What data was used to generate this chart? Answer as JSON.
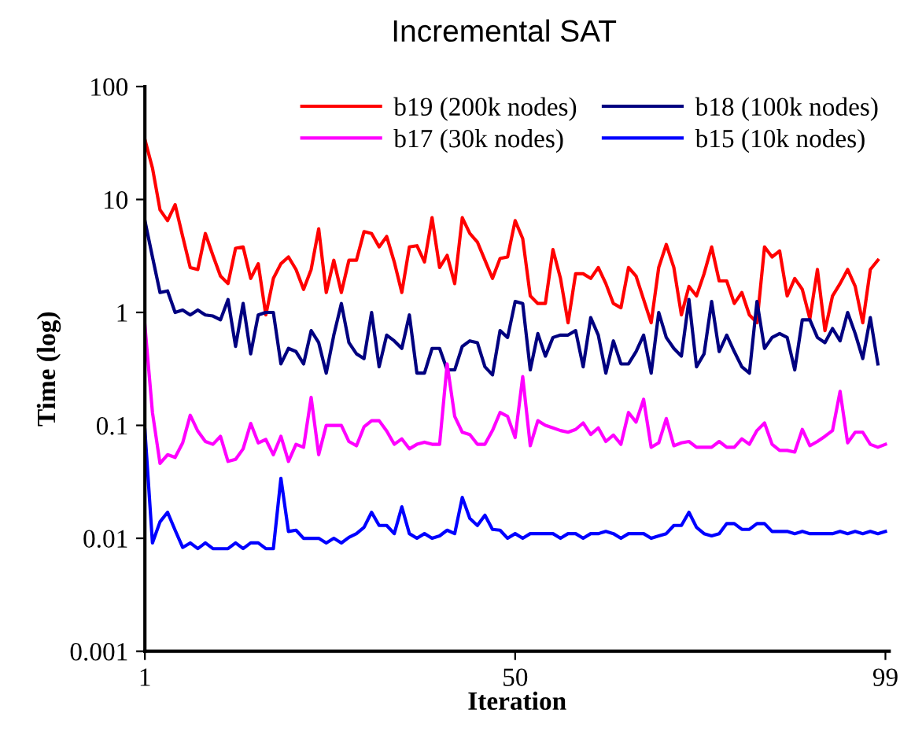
{
  "chart_data": {
    "type": "line",
    "title": "Incremental SAT",
    "xlabel": "Iteration",
    "ylabel": "Time (log)",
    "log": true,
    "grid": false,
    "legend": "top right",
    "marker": "none",
    "line_style": "solid",
    "xlim": [
      1,
      99.5
    ],
    "xticks": [
      1,
      50,
      99
    ],
    "ylim": [
      0.001,
      100
    ],
    "yticks": [
      0.001,
      0.01,
      0.1,
      1,
      10,
      100
    ],
    "series": [
      {
        "name": "b19 (200k nodes)",
        "color": "#ff0000",
        "x": [
          1,
          2,
          3,
          4,
          5,
          6,
          7,
          8,
          9,
          10,
          11,
          12,
          13,
          14,
          15,
          16,
          17,
          18,
          19,
          20,
          21,
          22,
          23,
          24,
          25,
          26,
          27,
          28,
          29,
          30,
          31,
          32,
          33,
          34,
          35,
          36,
          37,
          38,
          39,
          40,
          41,
          42,
          43,
          44,
          45,
          46,
          47,
          48,
          49,
          50,
          51,
          52,
          53,
          54,
          55,
          56,
          57,
          58,
          59,
          60,
          61,
          62,
          63,
          64,
          65,
          66,
          67,
          68,
          69,
          70,
          71,
          72,
          73,
          74,
          75,
          76,
          77,
          78,
          79,
          80,
          81,
          82,
          83,
          84,
          85,
          86,
          87,
          88,
          89,
          90,
          91,
          92,
          93,
          94,
          95,
          96,
          97,
          98
        ],
        "values": [
          34,
          19,
          8.1,
          6.5,
          9,
          4.7,
          2.5,
          2.4,
          5.0,
          3.2,
          2.1,
          1.8,
          3.7,
          3.8,
          2.0,
          2.7,
          0.95,
          2.0,
          2.7,
          3.1,
          2.4,
          1.6,
          2.4,
          5.5,
          1.5,
          2.9,
          1.5,
          2.9,
          2.9,
          5.2,
          5.0,
          3.8,
          4.7,
          2.8,
          1.5,
          3.8,
          3.9,
          2.8,
          6.9,
          2.5,
          3.2,
          1.8,
          6.9,
          5.0,
          4.2,
          2.9,
          2.0,
          3.0,
          3.1,
          6.5,
          4.5,
          1.4,
          1.2,
          1.2,
          3.6,
          2.0,
          0.81,
          2.2,
          2.2,
          2.0,
          2.5,
          1.8,
          1.2,
          1.1,
          2.5,
          2.1,
          1.3,
          0.81,
          2.5,
          4.0,
          2.5,
          0.95,
          1.7,
          1.4,
          2.2,
          3.8,
          1.9,
          1.9,
          1.2,
          1.5,
          0.95,
          0.81,
          3.8,
          3.1,
          3.5,
          1.4,
          2.0,
          1.6,
          0.88,
          2.4,
          0.69,
          1.4,
          1.8,
          2.4,
          1.7,
          0.81,
          2.4,
          2.9
        ]
      },
      {
        "name": "b18 (100k nodes)",
        "color": "#000080",
        "x": [
          1,
          2,
          3,
          4,
          5,
          6,
          7,
          8,
          9,
          10,
          11,
          12,
          13,
          14,
          15,
          16,
          17,
          18,
          19,
          20,
          21,
          22,
          23,
          24,
          25,
          26,
          27,
          28,
          29,
          30,
          31,
          32,
          33,
          34,
          35,
          36,
          37,
          38,
          39,
          40,
          41,
          42,
          43,
          44,
          45,
          46,
          47,
          48,
          49,
          50,
          51,
          52,
          53,
          54,
          55,
          56,
          57,
          58,
          59,
          60,
          61,
          62,
          63,
          64,
          65,
          66,
          67,
          68,
          69,
          70,
          71,
          72,
          73,
          74,
          75,
          76,
          77,
          78,
          79,
          80,
          81,
          82,
          83,
          84,
          85,
          86,
          87,
          88,
          89,
          90,
          91,
          92,
          93,
          94,
          95,
          96,
          97,
          98
        ],
        "values": [
          6.5,
          3.1,
          1.5,
          1.55,
          1.0,
          1.05,
          0.95,
          1.05,
          0.95,
          0.93,
          0.86,
          1.3,
          0.5,
          1.2,
          0.43,
          0.95,
          1.0,
          1.0,
          0.35,
          0.48,
          0.45,
          0.35,
          0.69,
          0.54,
          0.29,
          0.63,
          1.2,
          0.54,
          0.43,
          0.39,
          1.0,
          0.33,
          0.63,
          0.56,
          0.48,
          0.95,
          0.29,
          0.29,
          0.48,
          0.48,
          0.31,
          0.31,
          0.5,
          0.56,
          0.54,
          0.33,
          0.28,
          0.69,
          0.6,
          1.25,
          1.2,
          0.31,
          0.65,
          0.41,
          0.6,
          0.63,
          0.63,
          0.69,
          0.33,
          0.9,
          0.63,
          0.29,
          0.56,
          0.35,
          0.35,
          0.45,
          0.63,
          0.29,
          1.0,
          0.6,
          0.48,
          0.41,
          1.3,
          0.33,
          0.43,
          1.25,
          0.45,
          0.63,
          0.45,
          0.33,
          0.29,
          1.25,
          0.48,
          0.6,
          0.65,
          0.6,
          0.31,
          0.86,
          0.86,
          0.6,
          0.54,
          0.72,
          0.56,
          1.0,
          0.65,
          0.39,
          0.9,
          0.35
        ]
      },
      {
        "name": "b17 (30k nodes)",
        "color": "#ff00ff",
        "x": [
          1,
          2,
          3,
          4,
          5,
          6,
          7,
          8,
          9,
          10,
          11,
          12,
          13,
          14,
          15,
          16,
          17,
          18,
          19,
          20,
          21,
          22,
          23,
          24,
          25,
          26,
          27,
          28,
          29,
          30,
          31,
          32,
          33,
          34,
          35,
          36,
          37,
          38,
          39,
          40,
          41,
          42,
          43,
          44,
          45,
          46,
          47,
          48,
          49,
          50,
          51,
          52,
          53,
          54,
          55,
          56,
          57,
          58,
          59,
          60,
          61,
          62,
          63,
          64,
          65,
          66,
          67,
          68,
          69,
          70,
          71,
          72,
          73,
          74,
          75,
          76,
          77,
          78,
          79,
          80,
          81,
          82,
          83,
          84,
          85,
          86,
          87,
          88,
          89,
          90,
          91,
          92,
          93,
          94,
          95,
          96,
          97,
          98,
          99
        ],
        "values": [
          0.77,
          0.13,
          0.046,
          0.055,
          0.052,
          0.07,
          0.123,
          0.089,
          0.072,
          0.068,
          0.08,
          0.048,
          0.05,
          0.062,
          0.104,
          0.07,
          0.075,
          0.055,
          0.08,
          0.048,
          0.068,
          0.064,
          0.177,
          0.055,
          0.1,
          0.1,
          0.1,
          0.072,
          0.066,
          0.097,
          0.11,
          0.11,
          0.089,
          0.068,
          0.076,
          0.062,
          0.068,
          0.071,
          0.068,
          0.068,
          0.35,
          0.12,
          0.087,
          0.083,
          0.068,
          0.068,
          0.09,
          0.13,
          0.12,
          0.078,
          0.27,
          0.066,
          0.11,
          0.1,
          0.095,
          0.09,
          0.087,
          0.092,
          0.105,
          0.083,
          0.095,
          0.072,
          0.082,
          0.068,
          0.13,
          0.107,
          0.17,
          0.064,
          0.07,
          0.115,
          0.066,
          0.07,
          0.072,
          0.064,
          0.064,
          0.064,
          0.072,
          0.064,
          0.064,
          0.076,
          0.068,
          0.09,
          0.105,
          0.068,
          0.06,
          0.06,
          0.058,
          0.092,
          0.066,
          0.072,
          0.08,
          0.09,
          0.2,
          0.07,
          0.087,
          0.087,
          0.068,
          0.064,
          0.068
        ]
      },
      {
        "name": "b15 (10k nodes)",
        "color": "#0000ff",
        "x": [
          1,
          2,
          3,
          4,
          5,
          6,
          7,
          8,
          9,
          10,
          11,
          12,
          13,
          14,
          15,
          16,
          17,
          18,
          19,
          20,
          21,
          22,
          23,
          24,
          25,
          26,
          27,
          28,
          29,
          30,
          31,
          32,
          33,
          34,
          35,
          36,
          37,
          38,
          39,
          40,
          41,
          42,
          43,
          44,
          45,
          46,
          47,
          48,
          49,
          50,
          51,
          52,
          53,
          54,
          55,
          56,
          57,
          58,
          59,
          60,
          61,
          62,
          63,
          64,
          65,
          66,
          67,
          68,
          69,
          70,
          71,
          72,
          73,
          74,
          75,
          76,
          77,
          78,
          79,
          80,
          81,
          82,
          83,
          84,
          85,
          86,
          87,
          88,
          89,
          90,
          91,
          92,
          93,
          94,
          95,
          96,
          97,
          98,
          99
        ],
        "values": [
          0.091,
          0.0091,
          0.014,
          0.017,
          0.0118,
          0.0083,
          0.0091,
          0.0081,
          0.0091,
          0.0081,
          0.0081,
          0.0081,
          0.0091,
          0.0081,
          0.0091,
          0.0091,
          0.0081,
          0.0081,
          0.034,
          0.0115,
          0.0118,
          0.01,
          0.01,
          0.01,
          0.0091,
          0.01,
          0.0091,
          0.0102,
          0.011,
          0.0125,
          0.017,
          0.013,
          0.013,
          0.011,
          0.019,
          0.011,
          0.01,
          0.011,
          0.01,
          0.0105,
          0.0118,
          0.011,
          0.023,
          0.015,
          0.013,
          0.016,
          0.012,
          0.0118,
          0.01,
          0.011,
          0.01,
          0.011,
          0.011,
          0.011,
          0.011,
          0.01,
          0.011,
          0.011,
          0.01,
          0.011,
          0.011,
          0.0115,
          0.011,
          0.01,
          0.011,
          0.011,
          0.011,
          0.01,
          0.0105,
          0.011,
          0.013,
          0.013,
          0.017,
          0.0125,
          0.011,
          0.0105,
          0.011,
          0.0135,
          0.0135,
          0.012,
          0.012,
          0.0135,
          0.0135,
          0.0115,
          0.0115,
          0.0115,
          0.011,
          0.0115,
          0.011,
          0.011,
          0.011,
          0.011,
          0.0115,
          0.011,
          0.0115,
          0.011,
          0.0115,
          0.011,
          0.0115
        ]
      }
    ]
  }
}
